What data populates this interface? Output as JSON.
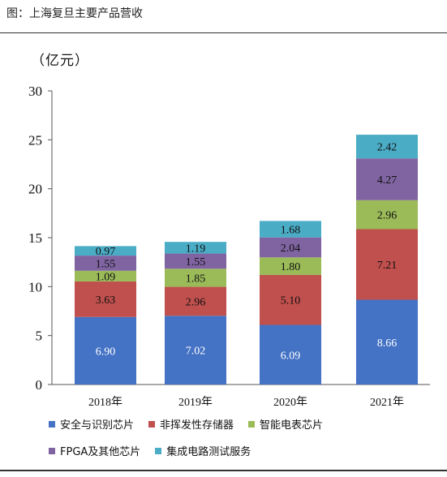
{
  "caption": "图：上海复旦主要产品营收",
  "unit": "（亿元）",
  "chart_data": {
    "type": "bar",
    "stacked": true,
    "categories": [
      "2018年",
      "2019年",
      "2020年",
      "2021年"
    ],
    "ylim": [
      0,
      30
    ],
    "yticks": [
      0,
      5,
      10,
      15,
      20,
      25,
      30
    ],
    "ylabel": "（亿元）",
    "series": [
      {
        "name": "安全与识别芯片",
        "color": "#4472C4",
        "values": [
          6.9,
          7.02,
          6.09,
          8.66
        ],
        "labels": [
          "6.90",
          "7.02",
          "6.09",
          "8.66"
        ]
      },
      {
        "name": "非挥发性存储器",
        "color": "#C0504D",
        "values": [
          3.63,
          2.96,
          5.1,
          7.21
        ],
        "labels": [
          "3.63",
          "2.96",
          "5.10",
          "7.21"
        ]
      },
      {
        "name": "智能电表芯片",
        "color": "#9BBB59",
        "values": [
          1.09,
          1.85,
          1.8,
          2.96
        ],
        "labels": [
          "1.09",
          "1.85",
          "1.80",
          "2.96"
        ]
      },
      {
        "name": "FPGA及其他芯片",
        "color": "#8064A2",
        "values": [
          1.55,
          1.55,
          2.04,
          4.27
        ],
        "labels": [
          "1.55",
          "1.55",
          "2.04",
          "4.27"
        ]
      },
      {
        "name": "集成电路测试服务",
        "color": "#4BACC6",
        "values": [
          0.97,
          1.19,
          1.68,
          2.42
        ],
        "labels": [
          "0.97",
          "1.19",
          "1.68",
          "2.42"
        ]
      }
    ],
    "legend_position": "bottom",
    "grid": false
  }
}
